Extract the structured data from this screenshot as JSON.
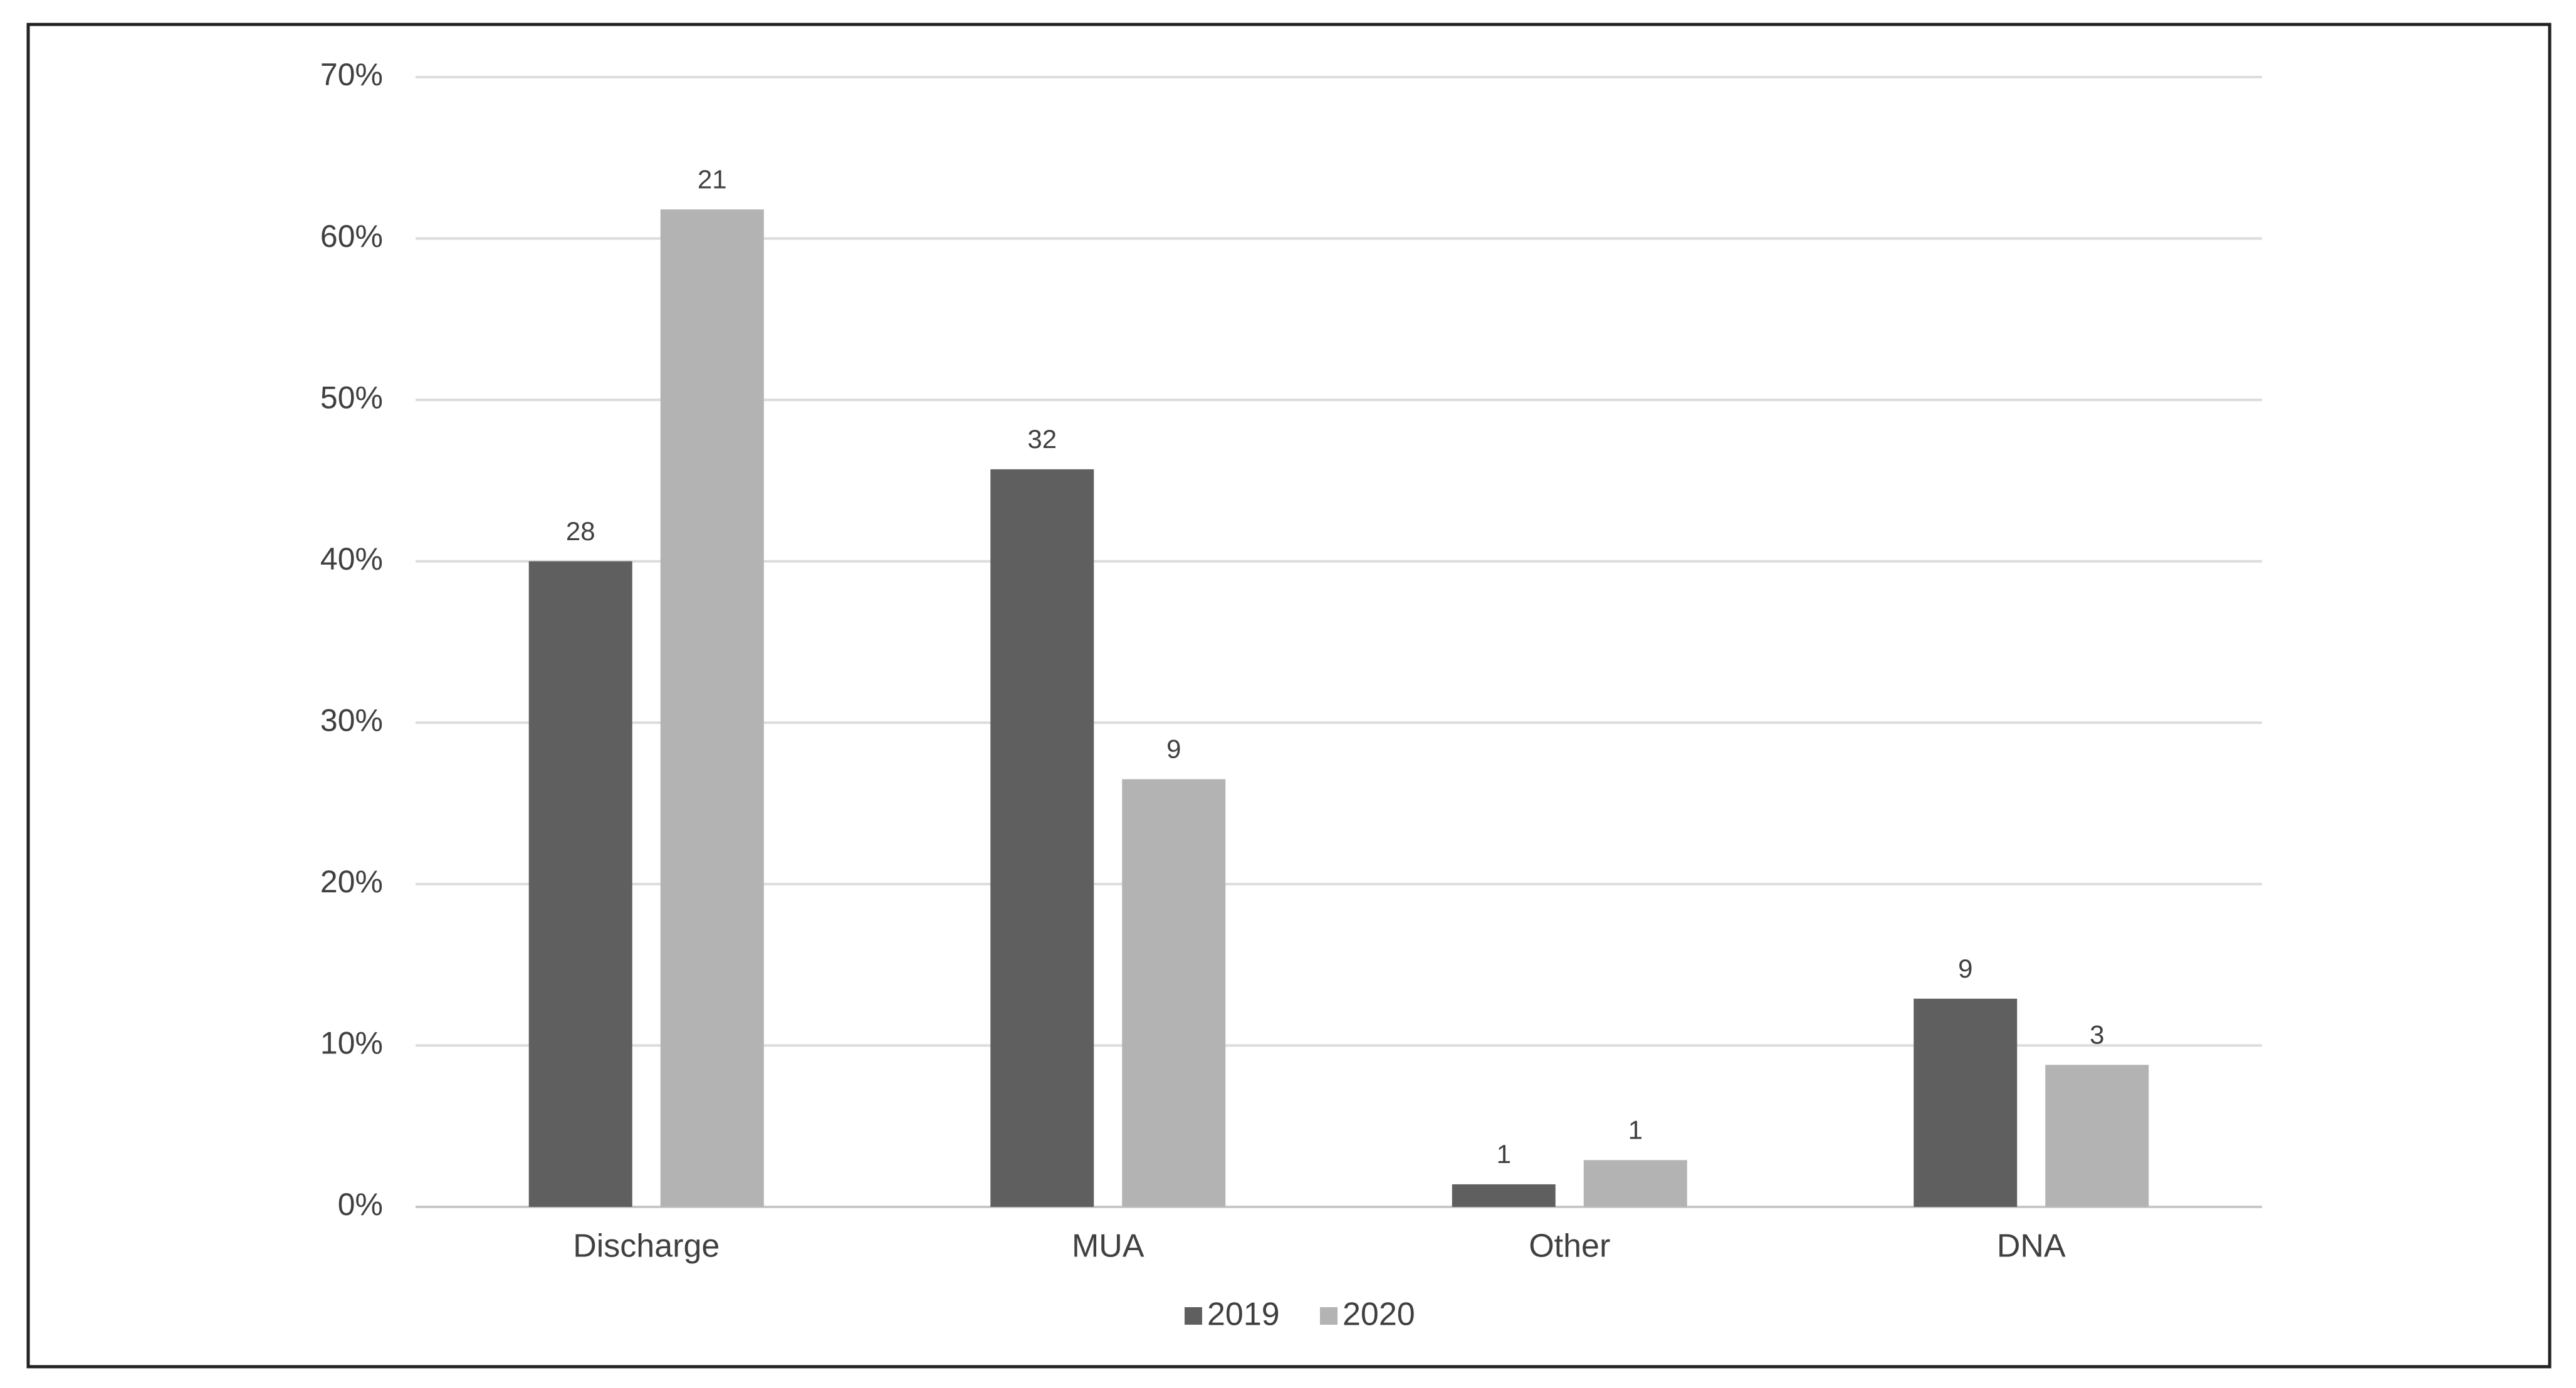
{
  "chart_data": {
    "type": "bar",
    "categories": [
      "Discharge",
      "MUA",
      "Other",
      "DNA"
    ],
    "series": [
      {
        "name": "2019",
        "color": "#5f5f5f",
        "values": [
          40,
          45.7,
          1.4,
          12.9
        ],
        "data_labels": [
          28,
          32,
          1,
          9
        ]
      },
      {
        "name": "2020",
        "color": "#b3b3b3",
        "values": [
          61.8,
          26.5,
          2.9,
          8.8
        ],
        "data_labels": [
          21,
          9,
          1,
          3
        ]
      }
    ],
    "ylim": [
      0,
      70
    ],
    "yticks": [
      {
        "value": 0,
        "label": "0%"
      },
      {
        "value": 10,
        "label": "10%"
      },
      {
        "value": 20,
        "label": "20%"
      },
      {
        "value": 30,
        "label": "30%"
      },
      {
        "value": 40,
        "label": "40%"
      },
      {
        "value": 50,
        "label": "50%"
      },
      {
        "value": 60,
        "label": "60%"
      },
      {
        "value": 70,
        "label": "70%"
      }
    ],
    "grid": true,
    "legend": "bottom"
  }
}
